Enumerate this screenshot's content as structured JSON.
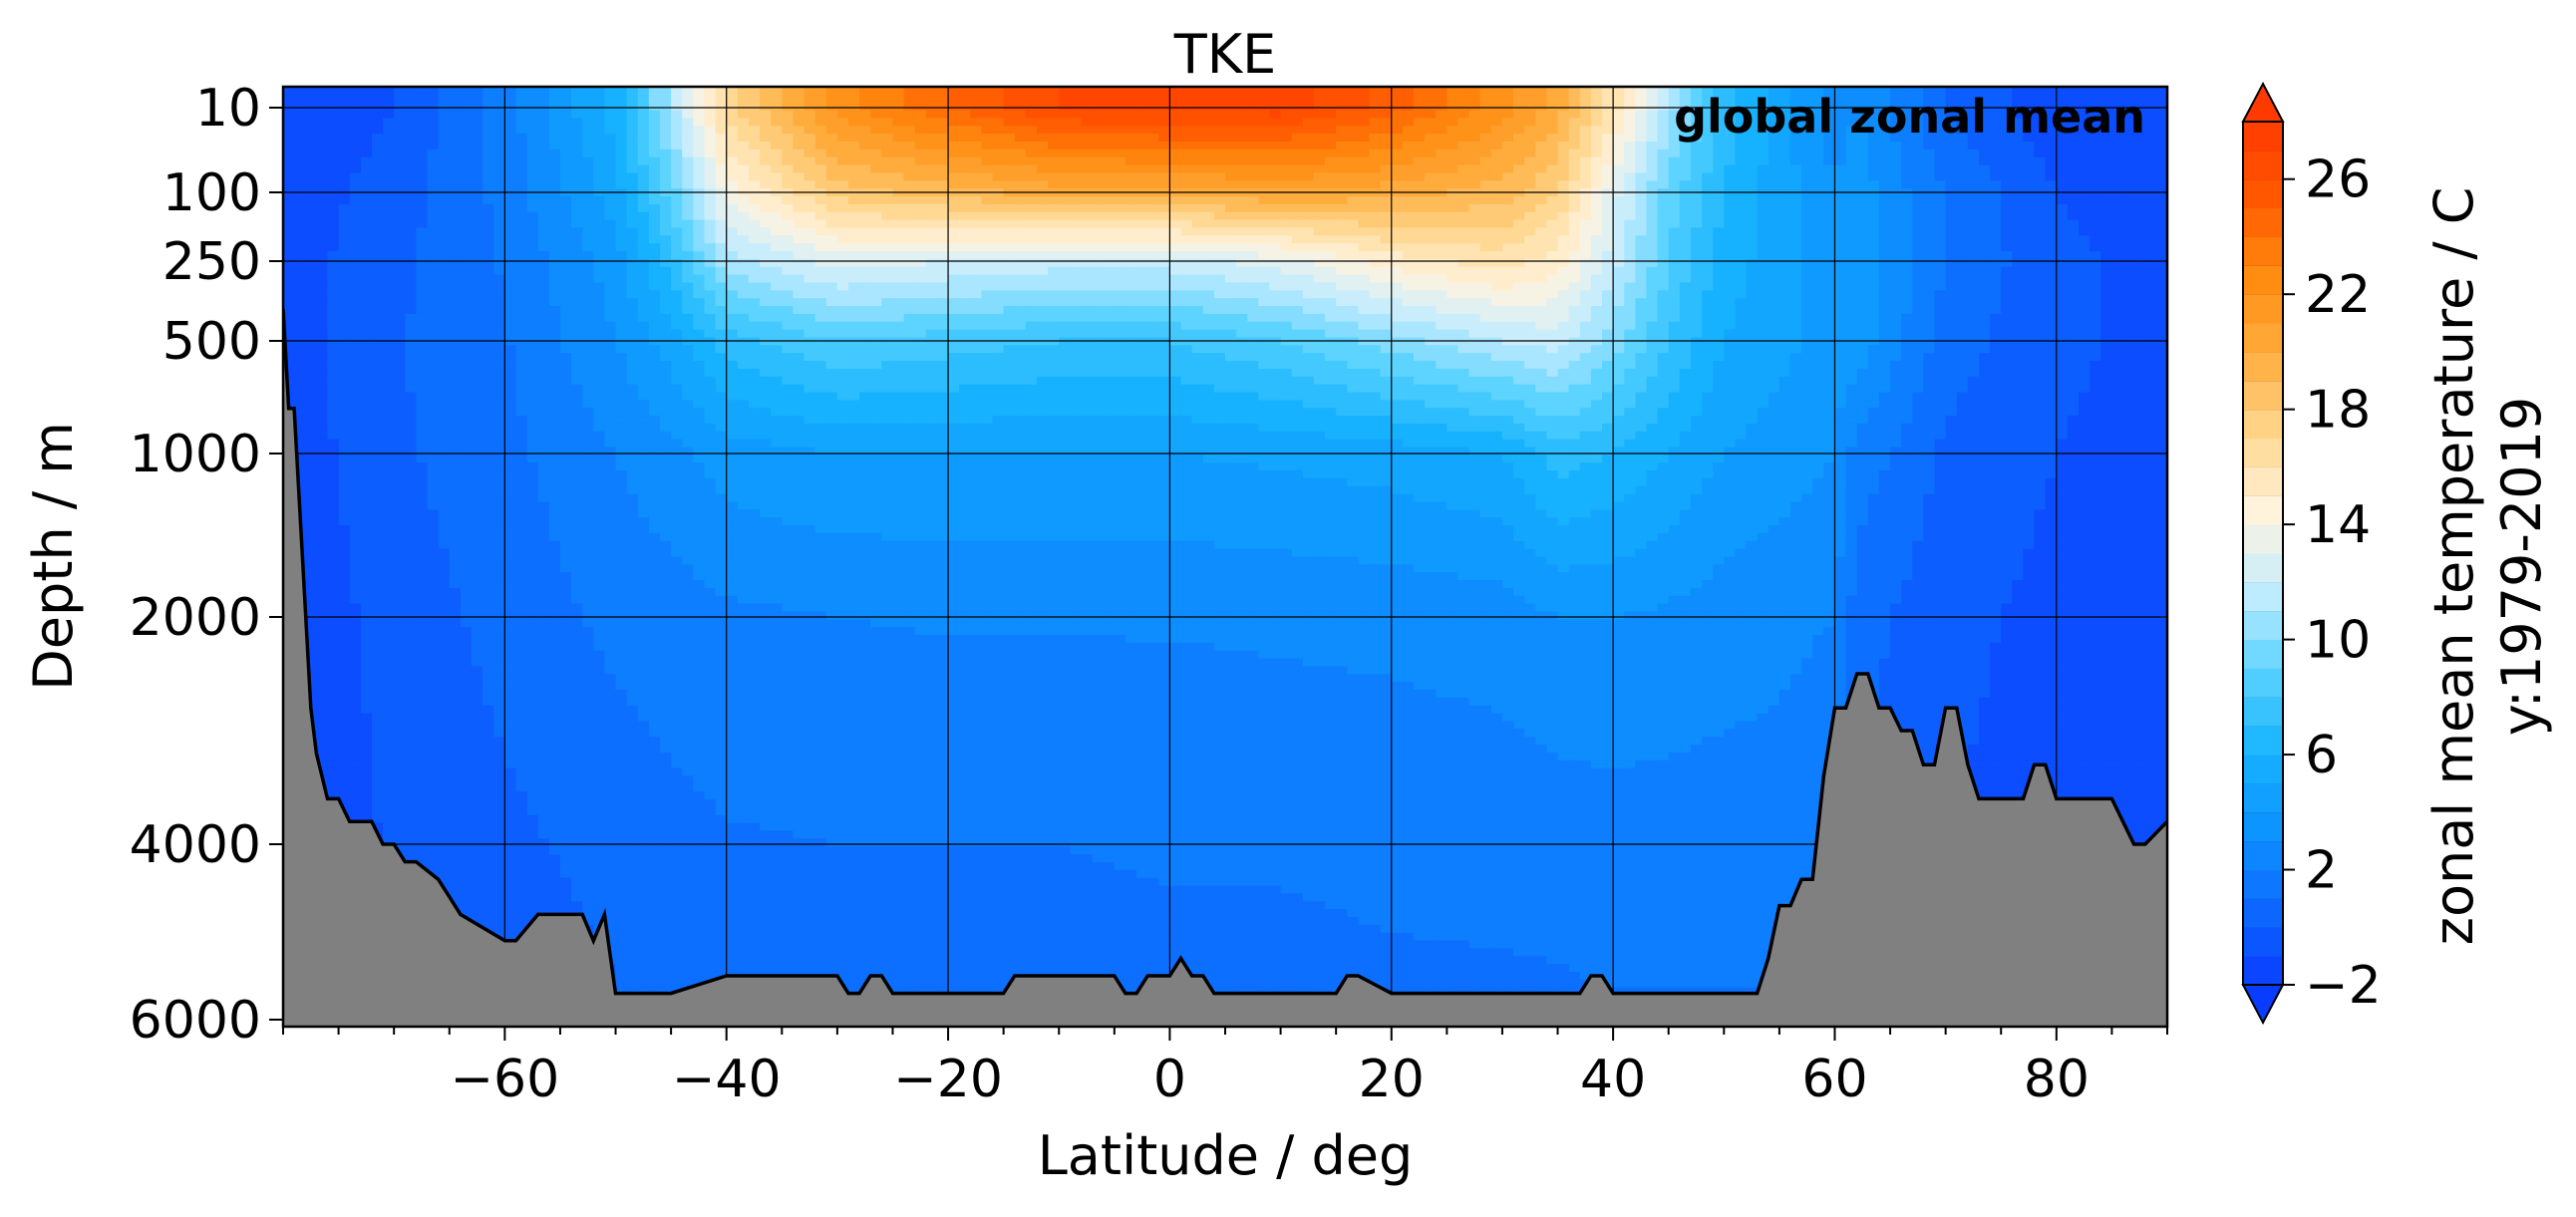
{
  "chart_data": {
    "type": "heatmap",
    "title": "TKE",
    "annotation": "global zonal mean",
    "xlabel": "Latitude / deg",
    "ylabel": "Depth / m",
    "xlim": [
      -80,
      90
    ],
    "x_ticks": [
      -60,
      -40,
      -20,
      0,
      20,
      40,
      60,
      80
    ],
    "x_tick_labels": [
      "−60",
      "−40",
      "−20",
      "0",
      "20",
      "40",
      "60",
      "80"
    ],
    "y_ticks": [
      10,
      100,
      250,
      500,
      1000,
      2000,
      4000,
      6000
    ],
    "y_tick_labels": [
      "10",
      "100",
      "250",
      "500",
      "1000",
      "2000",
      "4000",
      "6000"
    ],
    "y_scale": "nonlinear",
    "y_inverted": true,
    "grid": true,
    "colorbar": {
      "label": "zonal mean temperature / C",
      "sublabel": "y:1979-2019",
      "range": [
        -2,
        28
      ],
      "ticks": [
        -2,
        2,
        6,
        10,
        14,
        18,
        22,
        26
      ],
      "tick_labels": [
        "−2",
        "2",
        "6",
        "10",
        "14",
        "18",
        "22",
        "26"
      ],
      "extend": "both",
      "colors": [
        "#0a3cff",
        "#0d6bff",
        "#0d94ff",
        "#18b4ff",
        "#5ad3ff",
        "#c2ecff",
        "#fff4e0",
        "#ffd890",
        "#ffae40",
        "#ff8c10",
        "#ff5a00",
        "#ff3a00"
      ]
    },
    "temperature_field": {
      "latitudes": [
        -80,
        -70,
        -60,
        -50,
        -45,
        -40,
        -30,
        -20,
        -10,
        0,
        10,
        20,
        30,
        35,
        40,
        45,
        50,
        55,
        60,
        62,
        65,
        70,
        80,
        90
      ],
      "depths": [
        10,
        100,
        250,
        500,
        1000,
        2000,
        4000,
        6000
      ],
      "values": [
        [
          -1.5,
          -1.2,
          -1.0,
          -1.0,
          -1.2,
          -1.5,
          -1.8,
          -1.9
        ],
        [
          -0.5,
          0.0,
          0.2,
          0.4,
          0.3,
          0.0,
          -0.3,
          -0.5
        ],
        [
          2.0,
          1.8,
          1.6,
          1.4,
          1.2,
          0.8,
          0.3,
          0.0
        ],
        [
          6.0,
          5.0,
          4.0,
          3.5,
          2.5,
          1.8,
          0.8,
          0.4
        ],
        [
          11.0,
          9.0,
          7.0,
          5.0,
          3.2,
          2.0,
          1.2,
          0.8
        ],
        [
          17.0,
          14.0,
          11.0,
          7.0,
          4.0,
          2.3,
          1.4,
          1.0
        ],
        [
          22.0,
          18.0,
          13.0,
          8.5,
          4.5,
          2.5,
          1.5,
          1.1
        ],
        [
          24.5,
          19.0,
          12.5,
          8.0,
          4.5,
          2.6,
          1.5,
          1.1
        ],
        [
          26.5,
          20.0,
          12.0,
          7.5,
          4.5,
          2.6,
          1.5,
          1.1
        ],
        [
          27.0,
          20.0,
          12.0,
          7.5,
          4.5,
          2.6,
          1.6,
          1.2
        ],
        [
          27.0,
          20.5,
          13.0,
          8.5,
          4.7,
          2.7,
          1.6,
          1.2
        ],
        [
          25.0,
          20.0,
          15.0,
          10.0,
          5.0,
          2.8,
          1.7,
          1.3
        ],
        [
          22.0,
          19.0,
          16.0,
          11.5,
          5.5,
          3.0,
          1.8,
          1.3
        ],
        [
          20.0,
          17.5,
          15.0,
          12.0,
          7.0,
          3.5,
          1.9,
          1.3
        ],
        [
          16.0,
          13.0,
          12.0,
          10.0,
          6.5,
          3.5,
          2.0,
          1.4
        ],
        [
          11.0,
          9.0,
          8.5,
          7.5,
          5.5,
          3.3,
          2.0,
          1.4
        ],
        [
          7.0,
          6.5,
          6.0,
          5.5,
          4.5,
          3.0,
          2.0,
          1.4
        ],
        [
          5.0,
          5.0,
          5.0,
          4.8,
          4.0,
          2.8,
          2.0,
          1.4
        ],
        [
          3.0,
          3.5,
          4.0,
          4.0,
          3.5,
          2.5,
          1.5,
          1.0
        ],
        [
          3.5,
          4.2,
          4.2,
          4.2,
          2.0,
          1.0,
          0.5,
          0.2
        ],
        [
          2.5,
          3.0,
          3.2,
          3.0,
          1.5,
          0.5,
          0.0,
          -0.3
        ],
        [
          0.5,
          1.5,
          1.5,
          1.0,
          0.3,
          -0.2,
          -0.5,
          -0.7
        ],
        [
          -1.2,
          -0.5,
          -0.3,
          -0.3,
          -0.5,
          -0.8,
          -1.0,
          -1.2
        ],
        [
          -1.5,
          -1.0,
          -0.8,
          -0.8,
          -0.9,
          -1.0,
          -1.2,
          -1.4
        ]
      ]
    },
    "bathymetry": {
      "latitudes": [
        -80,
        -79.5,
        -79,
        -77.5,
        -77,
        -76,
        -75,
        -74,
        -72,
        -71,
        -70,
        -69,
        -68,
        -66,
        -65,
        -64,
        -60,
        -59,
        -57,
        -53,
        -52,
        -51,
        -50,
        -45,
        -40,
        -35,
        -31,
        -30,
        -29,
        -28,
        -27,
        -26,
        -25,
        -24,
        -20,
        -15,
        -14,
        -13,
        -10,
        -5,
        -4,
        -3,
        -2,
        0,
        1,
        2,
        3,
        4,
        5,
        10,
        15,
        16,
        17,
        20,
        25,
        30,
        35,
        37,
        38,
        39,
        40,
        45,
        50,
        53,
        54,
        55,
        56,
        57,
        58,
        59,
        60,
        61,
        62,
        63,
        64,
        65,
        66,
        67,
        68,
        69,
        70,
        71,
        72,
        73,
        75,
        77,
        78,
        79,
        80,
        85,
        87,
        88,
        90
      ],
      "depths": [
        400,
        800,
        800,
        2800,
        3200,
        3600,
        3600,
        3800,
        3800,
        4000,
        4000,
        4200,
        4200,
        4400,
        4600,
        4800,
        5100,
        5100,
        4800,
        4800,
        5100,
        4800,
        5700,
        5700,
        5500,
        5500,
        5500,
        5500,
        5700,
        5700,
        5500,
        5500,
        5700,
        5700,
        5700,
        5700,
        5500,
        5500,
        5500,
        5500,
        5700,
        5700,
        5500,
        5500,
        5300,
        5500,
        5500,
        5700,
        5700,
        5700,
        5700,
        5500,
        5500,
        5700,
        5700,
        5700,
        5700,
        5700,
        5500,
        5500,
        5700,
        5700,
        5700,
        5700,
        5300,
        4700,
        4700,
        4400,
        4400,
        3400,
        2800,
        2800,
        2500,
        2500,
        2800,
        2800,
        3000,
        3000,
        3300,
        3300,
        2800,
        2800,
        3300,
        3600,
        3600,
        3600,
        3300,
        3300,
        3600,
        3600,
        4000,
        4000,
        3800
      ]
    }
  }
}
